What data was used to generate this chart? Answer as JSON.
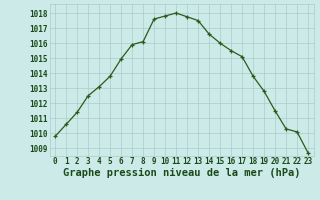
{
  "x": [
    0,
    1,
    2,
    3,
    4,
    5,
    6,
    7,
    8,
    9,
    10,
    11,
    12,
    13,
    14,
    15,
    16,
    17,
    18,
    19,
    20,
    21,
    22,
    23
  ],
  "y": [
    1009.8,
    1010.6,
    1011.4,
    1012.5,
    1013.1,
    1013.8,
    1014.95,
    1015.9,
    1016.1,
    1017.6,
    1017.8,
    1018.0,
    1017.75,
    1017.5,
    1016.6,
    1016.0,
    1015.5,
    1015.1,
    1013.8,
    1012.8,
    1011.5,
    1010.3,
    1010.1,
    1008.7
  ],
  "line_color": "#2d5a1b",
  "marker": "+",
  "marker_color": "#2d5a1b",
  "bg_color": "#cceae7",
  "grid_color": "#aacccc",
  "title": "Graphe pression niveau de la mer (hPa)",
  "title_color": "#1a4a1a",
  "ylabel_values": [
    1009,
    1010,
    1011,
    1012,
    1013,
    1014,
    1015,
    1016,
    1017,
    1018
  ],
  "ylim": [
    1008.5,
    1018.6
  ],
  "xlim": [
    -0.5,
    23.5
  ],
  "xlabel_values": [
    0,
    1,
    2,
    3,
    4,
    5,
    6,
    7,
    8,
    9,
    10,
    11,
    12,
    13,
    14,
    15,
    16,
    17,
    18,
    19,
    20,
    21,
    22,
    23
  ],
  "tick_label_color": "#1a4a1a",
  "tick_label_fontsize": 5.5,
  "title_fontsize": 7.5,
  "linewidth": 0.9,
  "markersize": 3.5,
  "markeredgewidth": 0.9
}
